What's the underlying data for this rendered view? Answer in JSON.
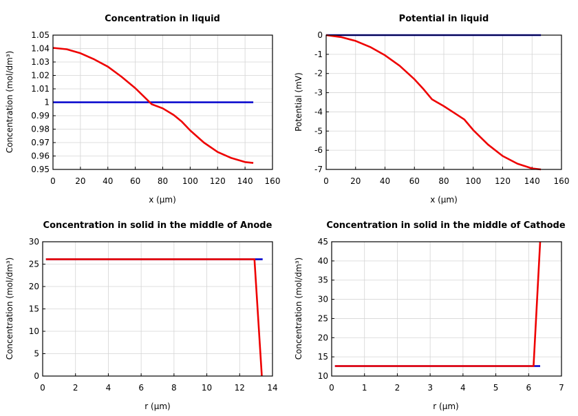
{
  "chart_data": [
    {
      "type": "line",
      "title": "Concentration in liquid",
      "xlabel": "x (µm)",
      "ylabel": "Concentration (mol/dm³)",
      "xlim": [
        0,
        160
      ],
      "ylim": [
        0.95,
        1.05
      ],
      "xticks": [
        "0",
        "20",
        "40",
        "60",
        "80",
        "100",
        "120",
        "140",
        "160"
      ],
      "yticks": [
        "0.95",
        "0.96",
        "0.97",
        "0.98",
        "0.99",
        "1",
        "1.01",
        "1.02",
        "1.03",
        "1.04",
        "1.05"
      ],
      "grid": true,
      "series": [
        {
          "color": "#0000cc",
          "x": [
            0,
            146
          ],
          "y": [
            1.0,
            1.0
          ]
        },
        {
          "color": "#ee0000",
          "x": [
            0,
            10,
            20,
            30,
            40,
            50,
            60,
            66,
            72,
            80,
            88,
            94,
            100,
            110,
            120,
            130,
            140,
            146
          ],
          "y": [
            1.0405,
            1.0395,
            1.0365,
            1.032,
            1.0265,
            1.019,
            1.0105,
            1.0045,
            0.9985,
            0.9955,
            0.9905,
            0.9855,
            0.979,
            0.97,
            0.963,
            0.9585,
            0.9555,
            0.9548
          ]
        }
      ]
    },
    {
      "type": "line",
      "title": "Potential in liquid",
      "xlabel": "x (µm)",
      "ylabel": "Potential (mV)",
      "xlim": [
        0,
        160
      ],
      "ylim": [
        -7,
        0
      ],
      "xticks": [
        "0",
        "20",
        "40",
        "60",
        "80",
        "100",
        "120",
        "140",
        "160"
      ],
      "yticks": [
        "-7",
        "-6",
        "-5",
        "-4",
        "-3",
        "-2",
        "-1",
        "0"
      ],
      "grid": true,
      "series": [
        {
          "color": "#0000cc",
          "x": [
            0,
            146
          ],
          "y": [
            0,
            0
          ]
        },
        {
          "color": "#ee0000",
          "x": [
            0,
            10,
            20,
            30,
            40,
            50,
            60,
            66,
            72,
            80,
            88,
            94,
            100,
            110,
            120,
            130,
            140,
            146
          ],
          "y": [
            0,
            -0.1,
            -0.3,
            -0.62,
            -1.05,
            -1.6,
            -2.3,
            -2.8,
            -3.35,
            -3.7,
            -4.1,
            -4.4,
            -4.95,
            -5.7,
            -6.3,
            -6.7,
            -6.95,
            -7.0
          ]
        }
      ]
    },
    {
      "type": "line",
      "title": "Concentration in solid in the middle of Anode",
      "xlabel": "r (µm)",
      "ylabel": "Concentration (mol/dm³)",
      "xlim": [
        0,
        14
      ],
      "ylim": [
        0,
        30
      ],
      "xticks": [
        "0",
        "2",
        "4",
        "6",
        "8",
        "10",
        "12",
        "14"
      ],
      "yticks": [
        "0",
        "5",
        "10",
        "15",
        "20",
        "25",
        "30"
      ],
      "grid": true,
      "series": [
        {
          "color": "#0000cc",
          "x": [
            0.2,
            13.4
          ],
          "y": [
            26.1,
            26.1
          ]
        },
        {
          "color": "#ee0000",
          "x": [
            0.2,
            12.9,
            13.35
          ],
          "y": [
            26.1,
            26.1,
            0
          ]
        }
      ]
    },
    {
      "type": "line",
      "title": "Concentration in solid in the middle of Cathode",
      "xlabel": "r (µm)",
      "ylabel": "Concentration (mol/dm³)",
      "xlim": [
        0,
        7
      ],
      "ylim": [
        10,
        45
      ],
      "xticks": [
        "0",
        "1",
        "2",
        "3",
        "4",
        "5",
        "6",
        "7"
      ],
      "yticks": [
        "10",
        "15",
        "20",
        "25",
        "30",
        "35",
        "40",
        "45"
      ],
      "grid": true,
      "series": [
        {
          "color": "#0000cc",
          "x": [
            0.1,
            6.35
          ],
          "y": [
            12.6,
            12.6
          ]
        },
        {
          "color": "#ee0000",
          "x": [
            0.1,
            6.15,
            6.35
          ],
          "y": [
            12.6,
            12.6,
            45
          ]
        }
      ]
    }
  ]
}
